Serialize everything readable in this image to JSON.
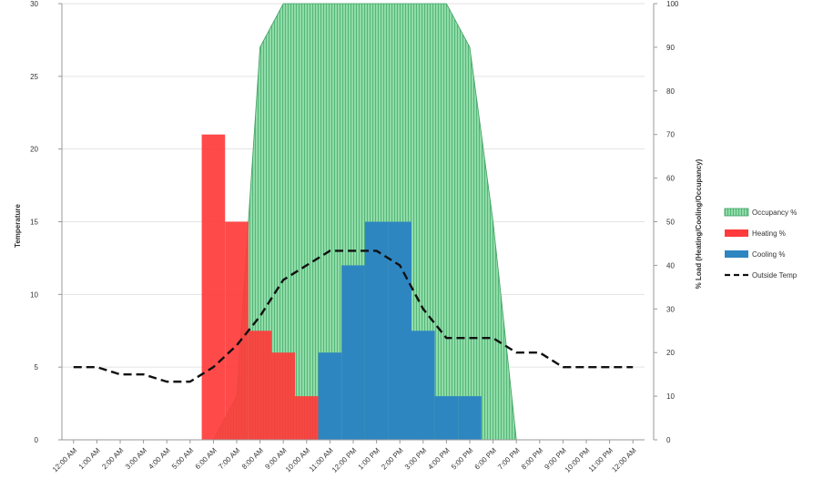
{
  "chart_data": {
    "type": "bar",
    "ylabel": "Temperature",
    "y2label": "% Load (Heating/Cooling/Occupancy)",
    "ylim": [
      0,
      30
    ],
    "y2lim": [
      0,
      100
    ],
    "yticks": [
      0,
      5,
      10,
      15,
      20,
      25,
      30
    ],
    "y2ticks": [
      0,
      10,
      20,
      30,
      40,
      50,
      60,
      70,
      80,
      90,
      100
    ],
    "categories": [
      "12:00 AM",
      "1:00 AM",
      "2:00 AM",
      "3:00 AM",
      "4:00 AM",
      "5:00 AM",
      "6:00 AM",
      "7:00 AM",
      "8:00 AM",
      "9:00 AM",
      "10:00 AM",
      "11:00 AM",
      "12:00 PM",
      "1:00 PM",
      "2:00 PM",
      "3:00 PM",
      "4:00 PM",
      "5:00 PM",
      "6:00 PM",
      "7:00 PM",
      "8:00 PM",
      "9:00 PM",
      "10:00 PM",
      "11:00 PM",
      "12:00 AM"
    ],
    "series": [
      {
        "name": "Occupancy %",
        "kind": "area",
        "axis": "right",
        "color": "#7fd39b",
        "values": [
          0,
          0,
          0,
          0,
          0,
          0,
          0,
          10,
          90,
          100,
          100,
          100,
          100,
          100,
          100,
          100,
          100,
          90,
          50,
          0,
          0,
          0,
          0,
          0,
          0
        ]
      },
      {
        "name": "Heating %",
        "kind": "column",
        "axis": "right",
        "color": "#ff3b3b",
        "values": [
          0,
          0,
          0,
          0,
          0,
          0,
          70,
          50,
          25,
          20,
          10,
          0,
          0,
          0,
          0,
          0,
          0,
          0,
          0,
          0,
          0,
          0,
          0,
          0,
          0
        ]
      },
      {
        "name": "Cooling %",
        "kind": "column",
        "axis": "right",
        "color": "#2e86c1",
        "values": [
          0,
          0,
          0,
          0,
          0,
          0,
          0,
          0,
          0,
          0,
          0,
          20,
          40,
          50,
          50,
          25,
          10,
          10,
          0,
          0,
          0,
          0,
          0,
          0,
          0
        ]
      },
      {
        "name": "Outside Temp",
        "kind": "line",
        "axis": "left",
        "color": "#111111",
        "dashed": true,
        "values": [
          5,
          5,
          4.5,
          4.5,
          4,
          4,
          5,
          6.5,
          8.5,
          11,
          12,
          13,
          13,
          13,
          12,
          9,
          7,
          7,
          7,
          6,
          6,
          5,
          5,
          5,
          5
        ]
      }
    ],
    "legend_position": "right"
  }
}
